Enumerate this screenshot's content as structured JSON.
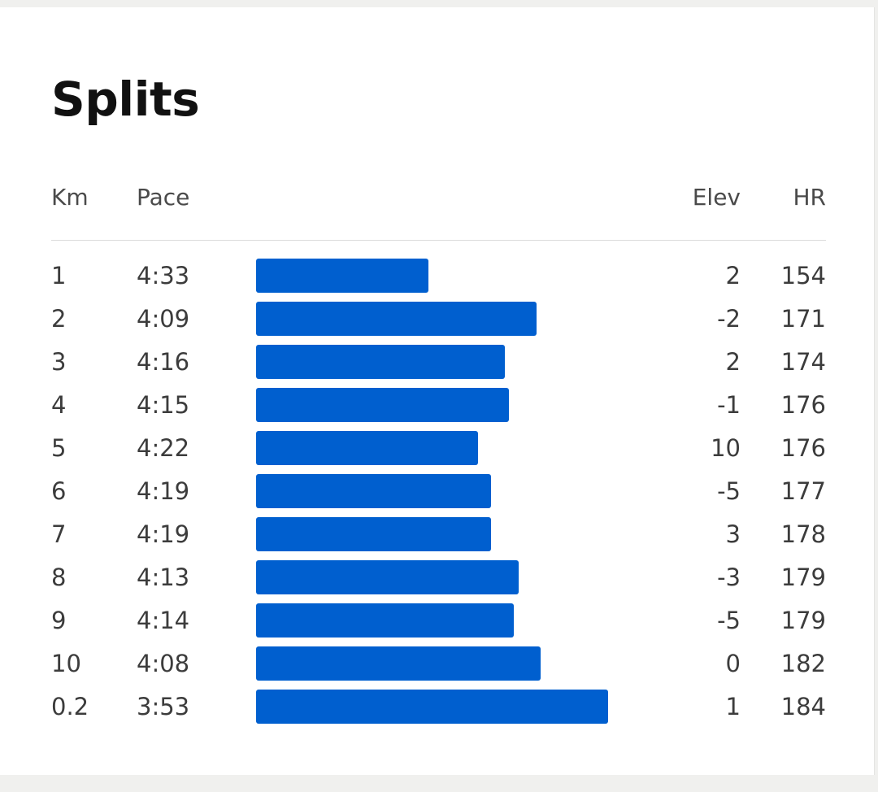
{
  "title": "Splits",
  "columns": {
    "km": "Km",
    "pace": "Pace",
    "elev": "Elev",
    "hr": "HR"
  },
  "colors": {
    "bar": "#005fcf",
    "background": "#f0f0ee",
    "card": "#ffffff"
  },
  "splits": [
    {
      "km": "1",
      "pace": "4:33",
      "elev": "2",
      "hr": "154"
    },
    {
      "km": "2",
      "pace": "4:09",
      "elev": "-2",
      "hr": "171"
    },
    {
      "km": "3",
      "pace": "4:16",
      "elev": "2",
      "hr": "174"
    },
    {
      "km": "4",
      "pace": "4:15",
      "elev": "-1",
      "hr": "176"
    },
    {
      "km": "5",
      "pace": "4:22",
      "elev": "10",
      "hr": "176"
    },
    {
      "km": "6",
      "pace": "4:19",
      "elev": "-5",
      "hr": "177"
    },
    {
      "km": "7",
      "pace": "4:19",
      "elev": "3",
      "hr": "178"
    },
    {
      "km": "8",
      "pace": "4:13",
      "elev": "-3",
      "hr": "179"
    },
    {
      "km": "9",
      "pace": "4:14",
      "elev": "-5",
      "hr": "179"
    },
    {
      "km": "10",
      "pace": "4:08",
      "elev": "0",
      "hr": "182"
    },
    {
      "km": "0.2",
      "pace": "3:53",
      "elev": "1",
      "hr": "184"
    }
  ]
}
